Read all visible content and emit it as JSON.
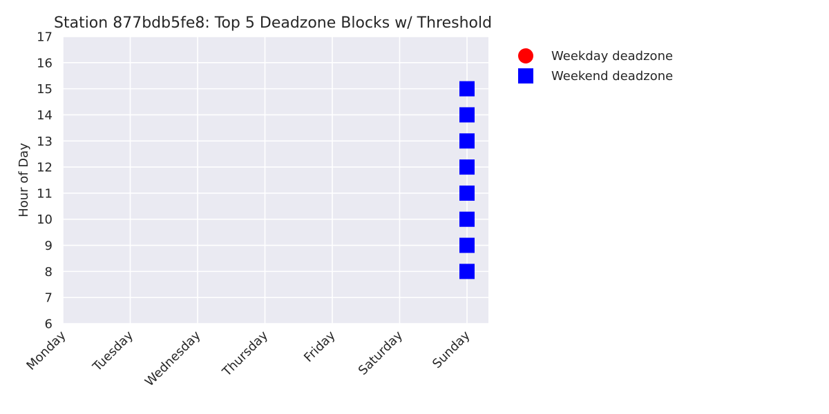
{
  "chart_data": {
    "type": "scatter",
    "title": "Station 877bdb5fe8: Top 5 Deadzone Blocks w/ Threshold",
    "xlabel": "",
    "ylabel": "Hour of Day",
    "x_categories": [
      "Monday",
      "Tuesday",
      "Wednesday",
      "Thursday",
      "Friday",
      "Saturday",
      "Sunday"
    ],
    "y_ticks": [
      6,
      7,
      8,
      9,
      10,
      11,
      12,
      13,
      14,
      15,
      16,
      17
    ],
    "ylim": [
      6,
      17
    ],
    "grid": true,
    "legend_position": "outside-top-right",
    "series": [
      {
        "name": "Weekday deadzone",
        "marker": "circle",
        "color": "#ff0000",
        "points": []
      },
      {
        "name": "Weekend deadzone",
        "marker": "square",
        "color": "#0000ff",
        "points": [
          {
            "x": "Sunday",
            "y": 8
          },
          {
            "x": "Sunday",
            "y": 9
          },
          {
            "x": "Sunday",
            "y": 10
          },
          {
            "x": "Sunday",
            "y": 11
          },
          {
            "x": "Sunday",
            "y": 12
          },
          {
            "x": "Sunday",
            "y": 13
          },
          {
            "x": "Sunday",
            "y": 14
          },
          {
            "x": "Sunday",
            "y": 15
          }
        ]
      }
    ]
  }
}
